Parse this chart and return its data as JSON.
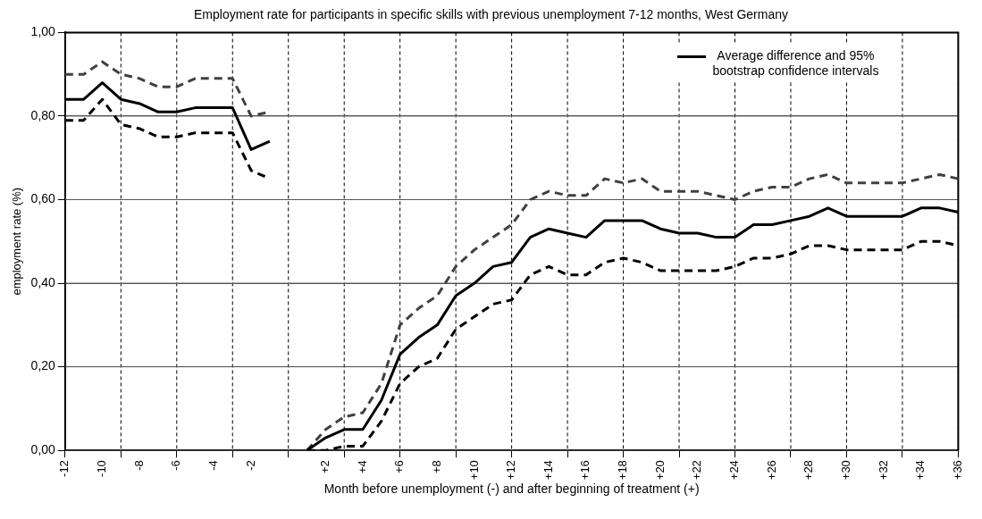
{
  "chart_data": {
    "type": "line",
    "title": "Employment rate for participants in specific skills with previous unemployment 7-12 months, West Germany",
    "xlabel": "Month before unemployment (-) and after beginning of treatment (+)",
    "ylabel": "employment rate (%)",
    "categories": [
      "-12",
      null,
      "-10",
      null,
      "-8",
      null,
      "-6",
      null,
      "-4",
      null,
      "-2",
      null,
      null,
      null,
      "+2",
      null,
      "+4",
      null,
      "+6",
      null,
      "+8",
      null,
      "+10",
      null,
      "+12",
      null,
      "+14",
      null,
      "+16",
      null,
      "+18",
      null,
      "+20",
      null,
      "+22",
      null,
      "+24",
      null,
      "+26",
      null,
      "+28",
      null,
      "+30",
      null,
      "+32",
      null,
      "+34",
      null,
      "+36"
    ],
    "series": [
      {
        "name": "Average difference and 95% bootstrap confidence intervals",
        "color": "#000000",
        "line_style": "solid",
        "values": [
          0.84,
          0.84,
          0.88,
          0.84,
          0.83,
          0.81,
          0.81,
          0.82,
          0.82,
          0.82,
          0.72,
          0.74,
          null,
          0,
          0.03,
          0.05,
          0.05,
          0.12,
          0.23,
          0.27,
          0.3,
          0.37,
          0.4,
          0.44,
          0.45,
          0.51,
          0.53,
          0.52,
          0.51,
          0.55,
          0.55,
          0.55,
          0.53,
          0.52,
          0.52,
          0.51,
          0.51,
          0.54,
          0.54,
          0.55,
          0.56,
          0.58,
          0.56,
          0.56,
          0.56,
          0.56,
          0.58,
          0.58,
          0.57
        ]
      },
      {
        "color": "#404040",
        "line_style": "dashed",
        "values": [
          0.9,
          0.9,
          0.93,
          0.9,
          0.89,
          0.87,
          0.87,
          0.89,
          0.89,
          0.89,
          0.8,
          0.81,
          null,
          0,
          0.05,
          0.08,
          0.09,
          0.16,
          0.3,
          0.34,
          0.37,
          0.44,
          0.48,
          0.51,
          0.54,
          0.6,
          0.62,
          0.61,
          0.61,
          0.65,
          0.64,
          0.65,
          0.62,
          0.62,
          0.62,
          0.61,
          0.6,
          0.62,
          0.63,
          0.63,
          0.65,
          0.66,
          0.64,
          0.64,
          0.64,
          0.64,
          0.65,
          0.66,
          0.65
        ]
      },
      {
        "color": "#000000",
        "line_style": "dashed",
        "values": [
          0.79,
          0.79,
          0.84,
          0.78,
          0.77,
          0.75,
          0.75,
          0.76,
          0.76,
          0.76,
          0.67,
          0.65,
          null,
          0,
          0,
          0.01,
          0.01,
          0.07,
          0.16,
          0.2,
          0.22,
          0.29,
          0.32,
          0.35,
          0.36,
          0.42,
          0.44,
          0.42,
          0.42,
          0.45,
          0.46,
          0.45,
          0.43,
          0.43,
          0.43,
          0.43,
          0.44,
          0.46,
          0.46,
          0.47,
          0.49,
          0.49,
          0.48,
          0.48,
          0.48,
          0.48,
          0.5,
          0.5,
          0.49
        ]
      }
    ],
    "ylim": [
      0,
      1
    ],
    "yticks": [
      {
        "value": 0,
        "label": "0,00"
      },
      {
        "value": 0.2,
        "label": "0,20"
      },
      {
        "value": 0.4,
        "label": "0,40"
      },
      {
        "value": 0.6,
        "label": "0,60"
      },
      {
        "value": 0.8,
        "label": "0,80"
      },
      {
        "value": 1,
        "label": "1,00"
      }
    ],
    "grid": true,
    "legend": "top right",
    "marker": "none"
  }
}
